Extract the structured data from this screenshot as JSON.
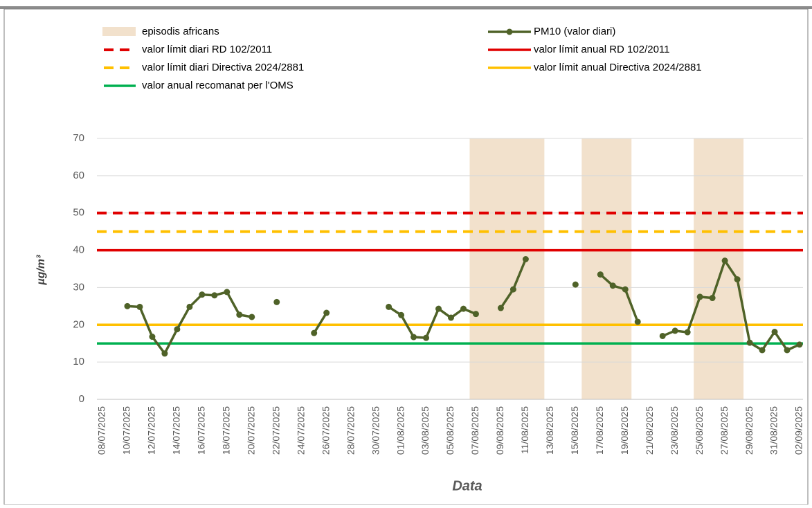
{
  "chart_data": {
    "type": "line",
    "categories": [
      "08/07/2025",
      null,
      "10/07/2025",
      null,
      "12/07/2025",
      null,
      "14/07/2025",
      null,
      "16/07/2025",
      null,
      "18/07/2025",
      null,
      "20/07/2025",
      null,
      "22/07/2025",
      null,
      "24/07/2025",
      null,
      "26/07/2025",
      null,
      "28/07/2025",
      null,
      "30/07/2025",
      null,
      "01/08/2025",
      null,
      "03/08/2025",
      null,
      "05/08/2025",
      null,
      "07/08/2025",
      null,
      "09/08/2025",
      null,
      "11/08/2025",
      null,
      "13/08/2025",
      null,
      "15/08/2025",
      null,
      "17/08/2025",
      null,
      "19/08/2025",
      null,
      "21/08/2025",
      null,
      "23/08/2025",
      null,
      "25/08/2025",
      null,
      "27/08/2025",
      null,
      "29/08/2025",
      null,
      "31/08/2025",
      null,
      "02/09/2025"
    ],
    "series": [
      {
        "name": "PM10 (valor diari)",
        "color": "#4f6228",
        "values": [
          null,
          null,
          25,
          24.8,
          16.8,
          12.3,
          18.8,
          24.8,
          28.1,
          27.9,
          28.8,
          22.7,
          22.1,
          null,
          26.1,
          null,
          null,
          17.8,
          23.2,
          null,
          null,
          null,
          null,
          24.8,
          22.6,
          16.7,
          16.5,
          24.3,
          21.9,
          24.3,
          22.9,
          null,
          24.5,
          29.5,
          37.6,
          null,
          null,
          null,
          30.8,
          null,
          33.5,
          30.5,
          29.5,
          20.8,
          null,
          17.0,
          18.4,
          18.0,
          27.5,
          27.2,
          37.2,
          32.2,
          15.2,
          13.2,
          18.1,
          13.2,
          14.7
        ]
      }
    ],
    "reference_lines": [
      {
        "name": "valor límit diari RD 102/2011",
        "color": "#e00000",
        "value": 50,
        "dashed": true
      },
      {
        "name": "valor límit diari Directiva 2024/2881",
        "color": "#ffc000",
        "value": 45,
        "dashed": true
      },
      {
        "name": "valor límit anual RD 102/2011",
        "color": "#e00000",
        "value": 40,
        "dashed": false
      },
      {
        "name": "valor límit anual  Directiva 2024/2881",
        "color": "#ffc000",
        "value": 20,
        "dashed": false
      },
      {
        "name": "valor anual recomanat per l'OMS",
        "color": "#00b050",
        "value": 15,
        "dashed": false
      }
    ],
    "episodes": {
      "name": "episodis africans",
      "color": "#f2e1cc",
      "ranges": [
        [
          30,
          35
        ],
        [
          39,
          42
        ],
        [
          48,
          51
        ]
      ]
    },
    "x_label": "Data",
    "y_label": "µg/m³",
    "ylim": [
      0,
      70
    ],
    "yticks": [
      0,
      10,
      20,
      30,
      40,
      50,
      60,
      70
    ],
    "grid": true
  }
}
